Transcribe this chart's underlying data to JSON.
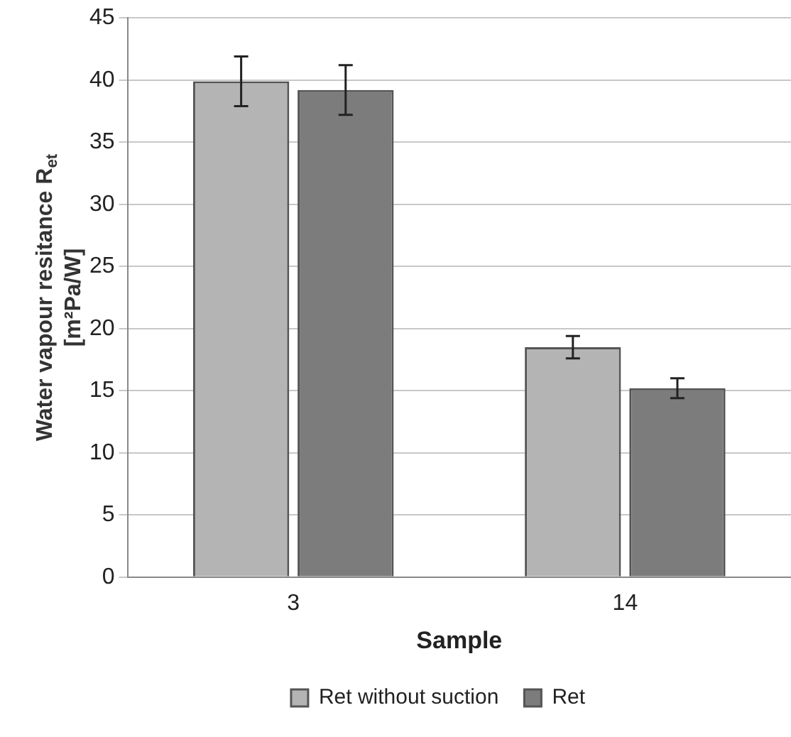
{
  "chart_data": {
    "type": "bar",
    "xlabel": "Sample",
    "ylabel": "Water vapour resitance R$_{et}$\n[m²Pa/W]",
    "categories": [
      "3",
      "14"
    ],
    "series": [
      {
        "name": "Ret without suction",
        "color": "#b4b4b4",
        "values": [
          39.9,
          18.5
        ],
        "errors": [
          2,
          0.9
        ]
      },
      {
        "name": "Ret",
        "color": "#7c7c7c",
        "values": [
          39.2,
          15.2
        ],
        "errors": [
          2,
          0.8
        ]
      }
    ],
    "ylim": [
      0,
      45
    ],
    "yticks": [
      0,
      5,
      10,
      15,
      20,
      25,
      30,
      35,
      40,
      45
    ],
    "grid": "y",
    "legend": "bottom"
  }
}
